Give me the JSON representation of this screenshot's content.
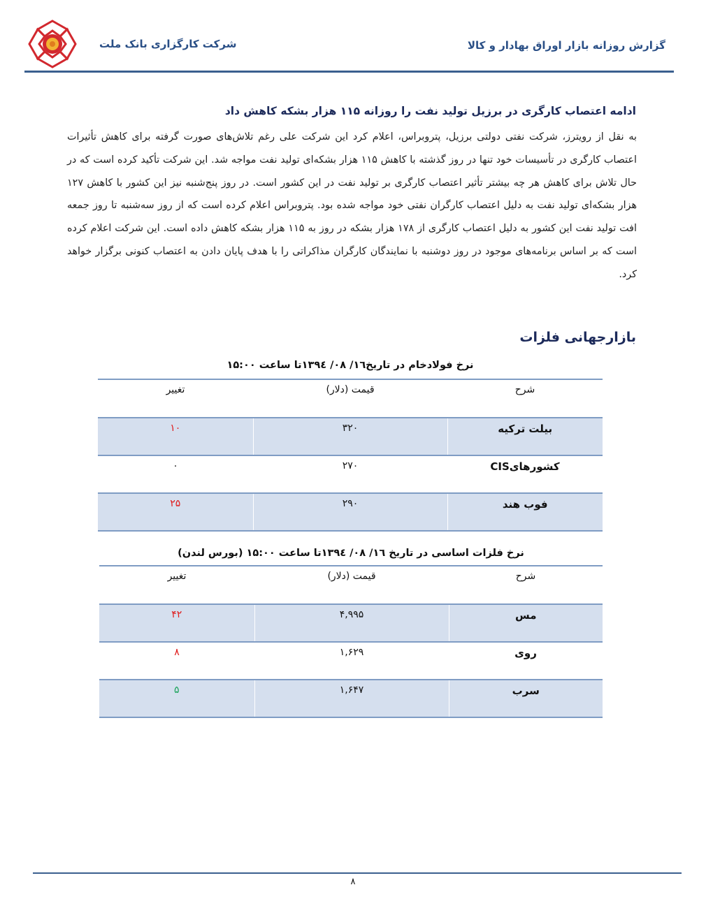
{
  "header": {
    "report_title": "گزارش روزانه بازار اوراق بهادار و کالا",
    "company": "شرکت کارگزاری بانک ملت"
  },
  "news": {
    "title": "ادامه اعتصاب کارگری در برزیل تولید نفت را روزانه ۱۱۵ هزار بشکه کاهش داد",
    "body": "به نقل از رویترز، شرکت نفتی دولتی برزیل، پتروبراس، اعلام کرد این شرکت علی رغم تلاش‌های صورت گرفته برای کاهش تأثیرات اعتصاب کارگری در تأسیسات خود تنها در روز گذشته با کاهش ۱۱۵ هزار بشکه‌ای تولید نفت مواجه شد. این شرکت تأکید کرده است که در حال تلاش برای کاهش هر چه بیشتر تأثیر اعتصاب کارگری بر تولید نفت در این کشور است. در روز پنج‌شنبه نیز این کشور با کاهش ۱۲۷ هزار بشکه‌ای تولید نفت به دلیل اعتصاب کارگران نفتی خود مواجه شده بود. پتروبراس اعلام کرده است که از روز سه‌شنبه تا روز جمعه افت تولید نفت این کشور به دلیل اعتصاب کارگری از ۱۷۸ هزار بشکه در روز به ۱۱۵ هزار بشکه کاهش داده است. این شرکت اعلام کرده است که بر اساس برنامه‌های موجود در روز دوشنبه با نمایندگان کارگران مذاکراتی را با هدف پایان دادن به اعتصاب کنونی برگزار خواهد کرد."
  },
  "section_title": "بازارجهانی فلزات",
  "steel_table": {
    "caption": "نرخ فولادخام در تاریخ۱٦/ ۰۸/ ۱۳۹٤تا ساعت ۱۵:۰۰",
    "headers": [
      "شرح",
      "قیمت (دلار)",
      "تغییر"
    ],
    "rows": [
      {
        "name": "بیلت ترکیه",
        "price": "۳۲۰",
        "change": "۱۰",
        "change_color": "#e01b1b"
      },
      {
        "name": "کشورهایCIS",
        "price": "۲۷۰",
        "change": "۰",
        "change_color": "#111111"
      },
      {
        "name": "فوب هند",
        "price": "۲۹۰",
        "change": "۲۵",
        "change_color": "#e01b1b"
      }
    ]
  },
  "base_metals_table": {
    "caption": "نرخ فلزات اساسی در تاریخ ۱٦/ ۰۸/ ۱۳۹٤تا ساعت ۱۵:۰۰ (بورس لندن)",
    "headers": [
      "شرح",
      "قیمت (دلار)",
      "تغییر"
    ],
    "rows": [
      {
        "name": "مس",
        "price": "۴,۹۹۵",
        "change": "۴۲",
        "change_color": "#e01b1b"
      },
      {
        "name": "روی",
        "price": "۱,۶۲۹",
        "change": "۸",
        "change_color": "#e01b1b"
      },
      {
        "name": "سرب",
        "price": "۱,۶۴۷",
        "change": "۵",
        "change_color": "#1aa35a"
      }
    ]
  },
  "footer": {
    "page_number": "۸"
  }
}
